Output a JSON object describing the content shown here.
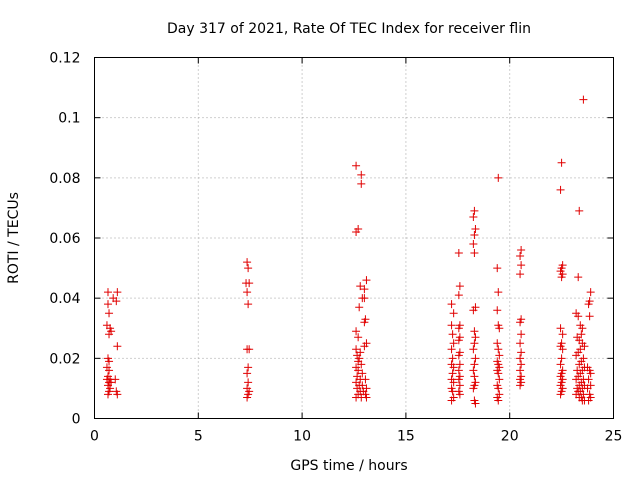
{
  "chart_data": {
    "type": "scatter",
    "title": "Day 317 of 2021, Rate Of TEC Index for receiver flin",
    "xlabel": "GPS time / hours",
    "ylabel": "ROTI / TECUs",
    "xlim": [
      0,
      25
    ],
    "ylim": [
      0,
      0.12
    ],
    "xticks": [
      "0",
      "5",
      "10",
      "15",
      "20",
      "25"
    ],
    "yticks": [
      "0",
      "0.02",
      "0.04",
      "0.06",
      "0.08",
      "0.1",
      "0.12"
    ],
    "grid": true,
    "marker": "+",
    "color": "#e00000",
    "series": [
      {
        "points": [
          [
            0.65,
            0.042
          ],
          [
            0.65,
            0.038
          ],
          [
            0.7,
            0.035
          ],
          [
            0.6,
            0.031
          ],
          [
            0.75,
            0.03
          ],
          [
            0.8,
            0.029
          ],
          [
            0.7,
            0.028
          ],
          [
            0.65,
            0.02
          ],
          [
            0.7,
            0.019
          ],
          [
            0.6,
            0.017
          ],
          [
            0.7,
            0.016
          ],
          [
            0.65,
            0.014
          ],
          [
            0.75,
            0.013
          ],
          [
            0.6,
            0.013
          ],
          [
            0.7,
            0.012
          ],
          [
            0.8,
            0.012
          ],
          [
            0.65,
            0.011
          ],
          [
            0.75,
            0.01
          ],
          [
            0.7,
            0.009
          ],
          [
            0.65,
            0.008
          ],
          [
            0.9,
            0.04
          ],
          [
            1.1,
            0.042
          ],
          [
            1.05,
            0.039
          ],
          [
            1.1,
            0.024
          ],
          [
            1.0,
            0.013
          ],
          [
            1.05,
            0.009
          ],
          [
            1.1,
            0.008
          ],
          [
            7.35,
            0.052
          ],
          [
            7.4,
            0.05
          ],
          [
            7.3,
            0.045
          ],
          [
            7.45,
            0.045
          ],
          [
            7.35,
            0.042
          ],
          [
            7.4,
            0.038
          ],
          [
            7.35,
            0.023
          ],
          [
            7.45,
            0.023
          ],
          [
            7.4,
            0.017
          ],
          [
            7.35,
            0.015
          ],
          [
            7.4,
            0.012
          ],
          [
            7.35,
            0.01
          ],
          [
            7.45,
            0.009
          ],
          [
            7.4,
            0.008
          ],
          [
            7.35,
            0.007
          ],
          [
            12.6,
            0.084
          ],
          [
            12.85,
            0.081
          ],
          [
            12.85,
            0.078
          ],
          [
            12.7,
            0.063
          ],
          [
            12.6,
            0.062
          ],
          [
            13.1,
            0.046
          ],
          [
            12.8,
            0.044
          ],
          [
            13.0,
            0.043
          ],
          [
            12.9,
            0.04
          ],
          [
            13.0,
            0.04
          ],
          [
            12.75,
            0.037
          ],
          [
            13.05,
            0.033
          ],
          [
            13.0,
            0.032
          ],
          [
            12.6,
            0.029
          ],
          [
            12.7,
            0.027
          ],
          [
            13.1,
            0.025
          ],
          [
            13.0,
            0.024
          ],
          [
            12.6,
            0.023
          ],
          [
            12.8,
            0.022
          ],
          [
            12.65,
            0.021
          ],
          [
            12.75,
            0.02
          ],
          [
            12.7,
            0.019
          ],
          [
            12.85,
            0.018
          ],
          [
            12.6,
            0.017
          ],
          [
            12.7,
            0.016
          ],
          [
            12.9,
            0.015
          ],
          [
            12.65,
            0.014
          ],
          [
            12.8,
            0.013
          ],
          [
            13.05,
            0.013
          ],
          [
            12.6,
            0.012
          ],
          [
            12.75,
            0.011
          ],
          [
            12.9,
            0.011
          ],
          [
            13.1,
            0.01
          ],
          [
            12.65,
            0.01
          ],
          [
            12.8,
            0.009
          ],
          [
            12.95,
            0.009
          ],
          [
            12.7,
            0.008
          ],
          [
            13.05,
            0.008
          ],
          [
            12.85,
            0.007
          ],
          [
            12.6,
            0.007
          ],
          [
            13.1,
            0.007
          ],
          [
            17.2,
            0.038
          ],
          [
            17.3,
            0.035
          ],
          [
            17.2,
            0.031
          ],
          [
            17.25,
            0.028
          ],
          [
            17.3,
            0.025
          ],
          [
            17.2,
            0.023
          ],
          [
            17.25,
            0.02
          ],
          [
            17.2,
            0.018
          ],
          [
            17.3,
            0.017
          ],
          [
            17.25,
            0.015
          ],
          [
            17.2,
            0.013
          ],
          [
            17.3,
            0.012
          ],
          [
            17.2,
            0.01
          ],
          [
            17.25,
            0.009
          ],
          [
            17.3,
            0.007
          ],
          [
            17.2,
            0.006
          ],
          [
            17.55,
            0.055
          ],
          [
            17.6,
            0.044
          ],
          [
            17.55,
            0.041
          ],
          [
            17.6,
            0.031
          ],
          [
            17.55,
            0.03
          ],
          [
            17.6,
            0.027
          ],
          [
            17.55,
            0.026
          ],
          [
            17.6,
            0.022
          ],
          [
            17.55,
            0.021
          ],
          [
            17.6,
            0.018
          ],
          [
            17.55,
            0.016
          ],
          [
            17.6,
            0.014
          ],
          [
            17.55,
            0.013
          ],
          [
            17.6,
            0.011
          ],
          [
            17.55,
            0.009
          ],
          [
            17.6,
            0.008
          ],
          [
            18.3,
            0.069
          ],
          [
            18.25,
            0.067
          ],
          [
            18.35,
            0.063
          ],
          [
            18.3,
            0.061
          ],
          [
            18.25,
            0.058
          ],
          [
            18.3,
            0.055
          ],
          [
            18.35,
            0.037
          ],
          [
            18.25,
            0.036
          ],
          [
            18.3,
            0.029
          ],
          [
            18.35,
            0.027
          ],
          [
            18.3,
            0.025
          ],
          [
            18.25,
            0.023
          ],
          [
            18.35,
            0.02
          ],
          [
            18.3,
            0.018
          ],
          [
            18.25,
            0.016
          ],
          [
            18.3,
            0.014
          ],
          [
            18.35,
            0.012
          ],
          [
            18.3,
            0.011
          ],
          [
            18.25,
            0.01
          ],
          [
            18.3,
            0.006
          ],
          [
            18.35,
            0.005
          ],
          [
            19.45,
            0.08
          ],
          [
            19.4,
            0.05
          ],
          [
            19.45,
            0.042
          ],
          [
            19.4,
            0.036
          ],
          [
            19.45,
            0.031
          ],
          [
            19.5,
            0.03
          ],
          [
            19.4,
            0.025
          ],
          [
            19.45,
            0.023
          ],
          [
            19.5,
            0.021
          ],
          [
            19.4,
            0.019
          ],
          [
            19.45,
            0.018
          ],
          [
            19.5,
            0.017
          ],
          [
            19.4,
            0.016
          ],
          [
            19.45,
            0.015
          ],
          [
            19.5,
            0.013
          ],
          [
            19.4,
            0.011
          ],
          [
            19.45,
            0.01
          ],
          [
            19.5,
            0.008
          ],
          [
            19.4,
            0.007
          ],
          [
            19.45,
            0.006
          ],
          [
            20.55,
            0.056
          ],
          [
            20.5,
            0.054
          ],
          [
            20.55,
            0.051
          ],
          [
            20.5,
            0.048
          ],
          [
            20.55,
            0.033
          ],
          [
            20.5,
            0.032
          ],
          [
            20.55,
            0.028
          ],
          [
            20.5,
            0.025
          ],
          [
            20.55,
            0.022
          ],
          [
            20.5,
            0.02
          ],
          [
            20.55,
            0.018
          ],
          [
            20.5,
            0.016
          ],
          [
            20.55,
            0.014
          ],
          [
            20.5,
            0.013
          ],
          [
            20.55,
            0.012
          ],
          [
            20.5,
            0.011
          ],
          [
            22.5,
            0.085
          ],
          [
            22.45,
            0.076
          ],
          [
            22.55,
            0.051
          ],
          [
            22.5,
            0.05
          ],
          [
            22.45,
            0.049
          ],
          [
            22.55,
            0.048
          ],
          [
            22.5,
            0.047
          ],
          [
            22.45,
            0.03
          ],
          [
            22.55,
            0.028
          ],
          [
            22.5,
            0.025
          ],
          [
            22.45,
            0.024
          ],
          [
            22.55,
            0.023
          ],
          [
            22.5,
            0.02
          ],
          [
            22.45,
            0.018
          ],
          [
            22.55,
            0.016
          ],
          [
            22.5,
            0.015
          ],
          [
            22.45,
            0.014
          ],
          [
            22.55,
            0.013
          ],
          [
            22.5,
            0.012
          ],
          [
            22.45,
            0.011
          ],
          [
            22.55,
            0.01
          ],
          [
            22.5,
            0.009
          ],
          [
            22.45,
            0.008
          ],
          [
            23.55,
            0.106
          ],
          [
            23.35,
            0.069
          ],
          [
            23.3,
            0.047
          ],
          [
            23.9,
            0.042
          ],
          [
            23.85,
            0.039
          ],
          [
            23.8,
            0.038
          ],
          [
            23.85,
            0.034
          ],
          [
            23.2,
            0.035
          ],
          [
            23.3,
            0.034
          ],
          [
            23.4,
            0.031
          ],
          [
            23.5,
            0.03
          ],
          [
            23.45,
            0.028
          ],
          [
            23.25,
            0.027
          ],
          [
            23.35,
            0.026
          ],
          [
            23.5,
            0.025
          ],
          [
            23.6,
            0.024
          ],
          [
            23.4,
            0.023
          ],
          [
            23.3,
            0.022
          ],
          [
            23.2,
            0.021
          ],
          [
            23.55,
            0.02
          ],
          [
            23.45,
            0.019
          ],
          [
            23.35,
            0.018
          ],
          [
            23.6,
            0.017
          ],
          [
            23.25,
            0.016
          ],
          [
            23.5,
            0.016
          ],
          [
            23.4,
            0.015
          ],
          [
            23.3,
            0.014
          ],
          [
            23.55,
            0.013
          ],
          [
            23.2,
            0.013
          ],
          [
            23.45,
            0.012
          ],
          [
            23.35,
            0.011
          ],
          [
            23.6,
            0.011
          ],
          [
            23.25,
            0.01
          ],
          [
            23.5,
            0.01
          ],
          [
            23.4,
            0.009
          ],
          [
            23.3,
            0.009
          ],
          [
            23.55,
            0.008
          ],
          [
            23.2,
            0.008
          ],
          [
            23.45,
            0.007
          ],
          [
            23.35,
            0.007
          ],
          [
            23.6,
            0.006
          ],
          [
            23.5,
            0.006
          ],
          [
            23.75,
            0.017
          ],
          [
            23.85,
            0.016
          ],
          [
            23.9,
            0.015
          ],
          [
            23.8,
            0.013
          ],
          [
            23.9,
            0.011
          ],
          [
            23.75,
            0.01
          ],
          [
            23.85,
            0.008
          ],
          [
            23.9,
            0.007
          ],
          [
            23.8,
            0.006
          ]
        ]
      }
    ]
  }
}
